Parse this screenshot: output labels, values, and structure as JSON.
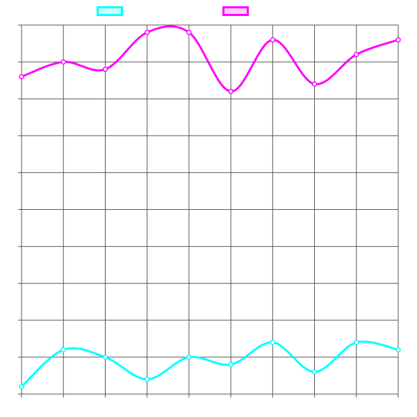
{
  "chart_data": {
    "type": "line",
    "title": "",
    "xlabel": "",
    "ylabel": "",
    "x": [
      0,
      1,
      2,
      3,
      4,
      5,
      6,
      7,
      8,
      9
    ],
    "xlim": [
      0,
      9
    ],
    "ylim": [
      0,
      10
    ],
    "grid": true,
    "legend_placement": "top",
    "series": [
      {
        "color": "#00ffff",
        "fill": "#ccffff",
        "values": [
          0.2,
          1.2,
          1.0,
          0.4,
          1.0,
          0.8,
          1.4,
          0.6,
          1.4,
          1.2
        ]
      },
      {
        "color": "#ff00ff",
        "fill": "#ffccff",
        "values": [
          8.6,
          9.0,
          8.8,
          9.8,
          9.8,
          8.2,
          9.6,
          8.4,
          9.2,
          9.6
        ]
      }
    ]
  }
}
